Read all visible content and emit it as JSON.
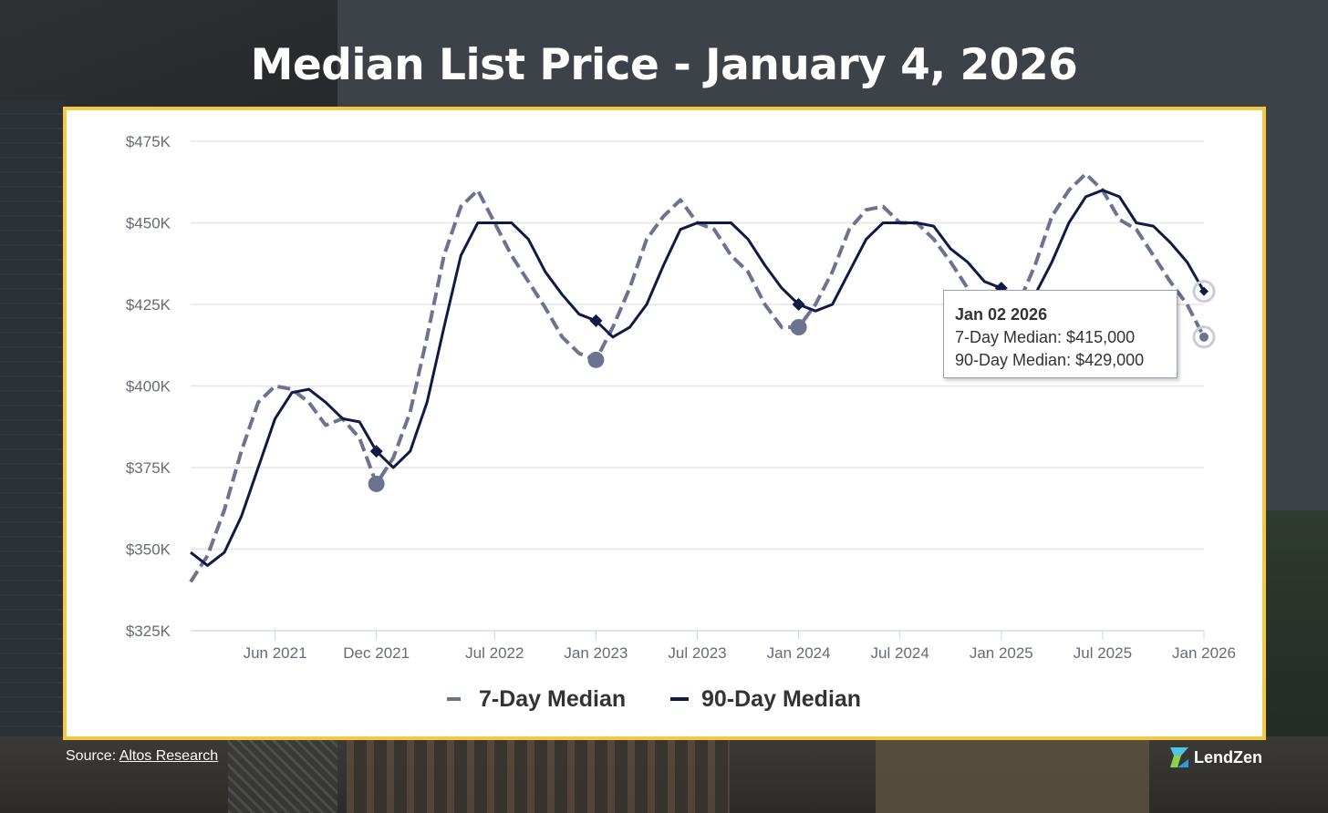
{
  "page": {
    "title": "Median List Price - January 4, 2026",
    "source_prefix": "Source: ",
    "source_link": "Altos Research",
    "brand": "LendZen"
  },
  "tooltip": {
    "date": "Jan 02 2026",
    "line1": "7-Day Median: $415,000",
    "line2": "90-Day Median: $429,000"
  },
  "colors": {
    "seven_day": "#6b7391",
    "ninety_day": "#0f1a45",
    "panel_border": "#f5c842",
    "grid": "#e6e6e6"
  },
  "chart_data": {
    "type": "line",
    "title": "Median List Price - January 4, 2026",
    "xlabel": "",
    "ylabel": "",
    "x_range": [
      "2021-01",
      "2026-01"
    ],
    "ylim": [
      325000,
      475000
    ],
    "y_ticks": [
      {
        "value": 325000,
        "label": "$325K"
      },
      {
        "value": 350000,
        "label": "$350K"
      },
      {
        "value": 375000,
        "label": "$375K"
      },
      {
        "value": 400000,
        "label": "$400K"
      },
      {
        "value": 425000,
        "label": "$425K"
      },
      {
        "value": 450000,
        "label": "$450K"
      },
      {
        "value": 475000,
        "label": "$475K"
      }
    ],
    "x_ticks": [
      {
        "value": "2021-06",
        "label": "Jun 2021"
      },
      {
        "value": "2021-12",
        "label": "Dec 2021"
      },
      {
        "value": "2022-07",
        "label": "Jul 2022"
      },
      {
        "value": "2023-01",
        "label": "Jan 2023"
      },
      {
        "value": "2023-07",
        "label": "Jul 2023"
      },
      {
        "value": "2024-01",
        "label": "Jan 2024"
      },
      {
        "value": "2024-07",
        "label": "Jul 2024"
      },
      {
        "value": "2025-01",
        "label": "Jan 2025"
      },
      {
        "value": "2025-07",
        "label": "Jul 2025"
      },
      {
        "value": "2026-01",
        "label": "Jan 2026"
      }
    ],
    "grid": true,
    "legend_position": "bottom",
    "series": [
      {
        "name": "7-Day Median",
        "style": "dashed",
        "points": [
          [
            "2021-01",
            340000
          ],
          [
            "2021-02",
            348000
          ],
          [
            "2021-03",
            362000
          ],
          [
            "2021-04",
            380000
          ],
          [
            "2021-05",
            395000
          ],
          [
            "2021-06",
            400000
          ],
          [
            "2021-07",
            399000
          ],
          [
            "2021-08",
            395000
          ],
          [
            "2021-09",
            388000
          ],
          [
            "2021-10",
            390000
          ],
          [
            "2021-11",
            384000
          ],
          [
            "2021-12",
            370000
          ],
          [
            "2022-01",
            378000
          ],
          [
            "2022-02",
            392000
          ],
          [
            "2022-03",
            415000
          ],
          [
            "2022-04",
            440000
          ],
          [
            "2022-05",
            455000
          ],
          [
            "2022-06",
            460000
          ],
          [
            "2022-07",
            450000
          ],
          [
            "2022-08",
            440000
          ],
          [
            "2022-09",
            432000
          ],
          [
            "2022-10",
            424000
          ],
          [
            "2022-11",
            415000
          ],
          [
            "2022-12",
            410000
          ],
          [
            "2023-01",
            408000
          ],
          [
            "2023-02",
            418000
          ],
          [
            "2023-03",
            430000
          ],
          [
            "2023-04",
            445000
          ],
          [
            "2023-05",
            452000
          ],
          [
            "2023-06",
            457000
          ],
          [
            "2023-07",
            450000
          ],
          [
            "2023-08",
            448000
          ],
          [
            "2023-09",
            440000
          ],
          [
            "2023-10",
            435000
          ],
          [
            "2023-11",
            425000
          ],
          [
            "2023-12",
            418000
          ],
          [
            "2024-01",
            418000
          ],
          [
            "2024-02",
            425000
          ],
          [
            "2024-03",
            435000
          ],
          [
            "2024-04",
            448000
          ],
          [
            "2024-05",
            454000
          ],
          [
            "2024-06",
            455000
          ],
          [
            "2024-07",
            450000
          ],
          [
            "2024-08",
            450000
          ],
          [
            "2024-09",
            445000
          ],
          [
            "2024-10",
            438000
          ],
          [
            "2024-11",
            430000
          ],
          [
            "2024-12",
            425000
          ],
          [
            "2025-01",
            420000
          ],
          [
            "2025-02",
            425000
          ],
          [
            "2025-03",
            437000
          ],
          [
            "2025-04",
            452000
          ],
          [
            "2025-05",
            460000
          ],
          [
            "2025-06",
            465000
          ],
          [
            "2025-07",
            460000
          ],
          [
            "2025-08",
            451000
          ],
          [
            "2025-09",
            448000
          ],
          [
            "2025-10",
            440000
          ],
          [
            "2025-11",
            432000
          ],
          [
            "2025-12",
            425000
          ],
          [
            "2026-01",
            415000
          ]
        ]
      },
      {
        "name": "90-Day Median",
        "style": "solid",
        "points": [
          [
            "2021-01",
            349000
          ],
          [
            "2021-02",
            345000
          ],
          [
            "2021-03",
            349000
          ],
          [
            "2021-04",
            360000
          ],
          [
            "2021-05",
            375000
          ],
          [
            "2021-06",
            390000
          ],
          [
            "2021-07",
            398000
          ],
          [
            "2021-08",
            399000
          ],
          [
            "2021-09",
            395000
          ],
          [
            "2021-10",
            390000
          ],
          [
            "2021-11",
            389000
          ],
          [
            "2021-12",
            380000
          ],
          [
            "2022-01",
            375000
          ],
          [
            "2022-02",
            380000
          ],
          [
            "2022-03",
            395000
          ],
          [
            "2022-04",
            418000
          ],
          [
            "2022-05",
            440000
          ],
          [
            "2022-06",
            450000
          ],
          [
            "2022-07",
            450000
          ],
          [
            "2022-08",
            450000
          ],
          [
            "2022-09",
            445000
          ],
          [
            "2022-10",
            435000
          ],
          [
            "2022-11",
            428000
          ],
          [
            "2022-12",
            422000
          ],
          [
            "2023-01",
            420000
          ],
          [
            "2023-02",
            415000
          ],
          [
            "2023-03",
            418000
          ],
          [
            "2023-04",
            425000
          ],
          [
            "2023-05",
            437000
          ],
          [
            "2023-06",
            448000
          ],
          [
            "2023-07",
            450000
          ],
          [
            "2023-08",
            450000
          ],
          [
            "2023-09",
            450000
          ],
          [
            "2023-10",
            445000
          ],
          [
            "2023-11",
            437000
          ],
          [
            "2023-12",
            430000
          ],
          [
            "2024-01",
            425000
          ],
          [
            "2024-02",
            423000
          ],
          [
            "2024-03",
            425000
          ],
          [
            "2024-04",
            435000
          ],
          [
            "2024-05",
            445000
          ],
          [
            "2024-06",
            450000
          ],
          [
            "2024-07",
            450000
          ],
          [
            "2024-08",
            450000
          ],
          [
            "2024-09",
            449000
          ],
          [
            "2024-10",
            442000
          ],
          [
            "2024-11",
            438000
          ],
          [
            "2024-12",
            432000
          ],
          [
            "2025-01",
            430000
          ],
          [
            "2025-02",
            426000
          ],
          [
            "2025-03",
            428000
          ],
          [
            "2025-04",
            438000
          ],
          [
            "2025-05",
            450000
          ],
          [
            "2025-06",
            458000
          ],
          [
            "2025-07",
            460000
          ],
          [
            "2025-08",
            458000
          ],
          [
            "2025-09",
            450000
          ],
          [
            "2025-10",
            449000
          ],
          [
            "2025-11",
            444000
          ],
          [
            "2025-12",
            438000
          ],
          [
            "2026-01",
            429000
          ]
        ]
      }
    ],
    "markers": [
      {
        "series": "90-Day Median",
        "x": "2021-12",
        "y": 380000
      },
      {
        "series": "7-Day Median",
        "x": "2021-12",
        "y": 370000
      },
      {
        "series": "90-Day Median",
        "x": "2023-01",
        "y": 420000
      },
      {
        "series": "7-Day Median",
        "x": "2023-01",
        "y": 408000
      },
      {
        "series": "90-Day Median",
        "x": "2024-01",
        "y": 425000
      },
      {
        "series": "7-Day Median",
        "x": "2024-01",
        "y": 418000
      },
      {
        "series": "90-Day Median",
        "x": "2025-01",
        "y": 430000
      },
      {
        "series": "7-Day Median",
        "x": "2025-01",
        "y": 420000
      },
      {
        "series": "90-Day Median",
        "x": "2026-01",
        "y": 429000
      },
      {
        "series": "7-Day Median",
        "x": "2026-01",
        "y": 415000
      }
    ]
  }
}
